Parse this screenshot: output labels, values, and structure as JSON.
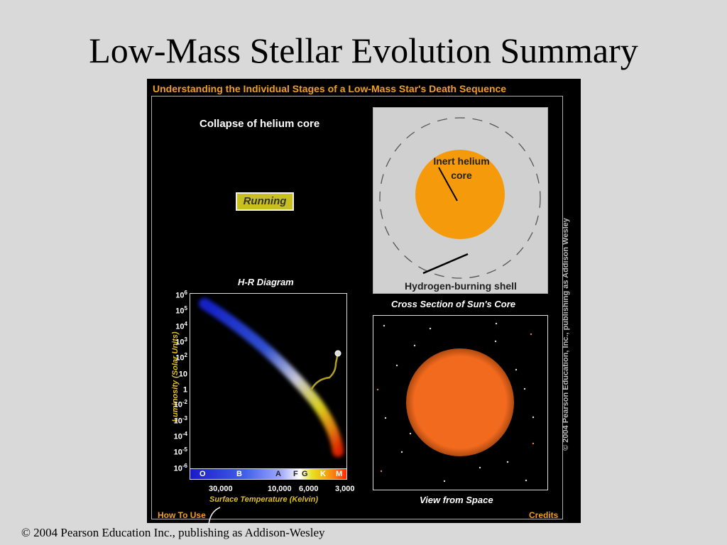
{
  "slide": {
    "title": "Low-Mass Stellar Evolution Summary",
    "footer": "© 2004 Pearson Education Inc., publishing as Addison-Wesley"
  },
  "panel": {
    "header": "Understanding the Individual Stages of a Low-Mass Star's Death Sequence",
    "stage_label": "Collapse of helium core",
    "running_label": "Running",
    "side_copyright": "© 2004 Pearson Education, Inc., publishing as Addison Wesley",
    "how_to_use": "How To Use",
    "credits": "Credits"
  },
  "hr_diagram": {
    "title": "H-R Diagram",
    "y_axis_label": "Luminosity (Solar Units)",
    "y_ticks": [
      {
        "base": "10",
        "exp": "6"
      },
      {
        "base": "10",
        "exp": "5"
      },
      {
        "base": "10",
        "exp": "4"
      },
      {
        "base": "10",
        "exp": "3"
      },
      {
        "base": "10",
        "exp": "2"
      },
      {
        "base": "10",
        "exp": ""
      },
      {
        "base": "1",
        "exp": ""
      },
      {
        "base": "10",
        "exp": "-2"
      },
      {
        "base": "10",
        "exp": "-3"
      },
      {
        "base": "10",
        "exp": "-4"
      },
      {
        "base": "10",
        "exp": "-5"
      },
      {
        "base": "10",
        "exp": "-6"
      }
    ],
    "spectral_classes": [
      "O",
      "B",
      "A",
      "F",
      "G",
      "K",
      "M"
    ],
    "x_ticks": [
      "30,000",
      "10,000",
      "6,000",
      "3,000"
    ],
    "x_axis_label": "Surface  Temperature (Kelvin)"
  },
  "cross_section": {
    "core_label_line1": "Inert helium",
    "core_label_line2": "core",
    "shell_label": "Hydrogen-burning shell",
    "caption": "Cross Section of Sun's Core"
  },
  "space_view": {
    "caption": "View from Space"
  },
  "colors": {
    "header_orange": "#f0a020",
    "axis_yellow": "#e0c020",
    "core_orange": "#f59a0a",
    "star_orange": "#f26a1e",
    "running_button": "#c8c020"
  }
}
